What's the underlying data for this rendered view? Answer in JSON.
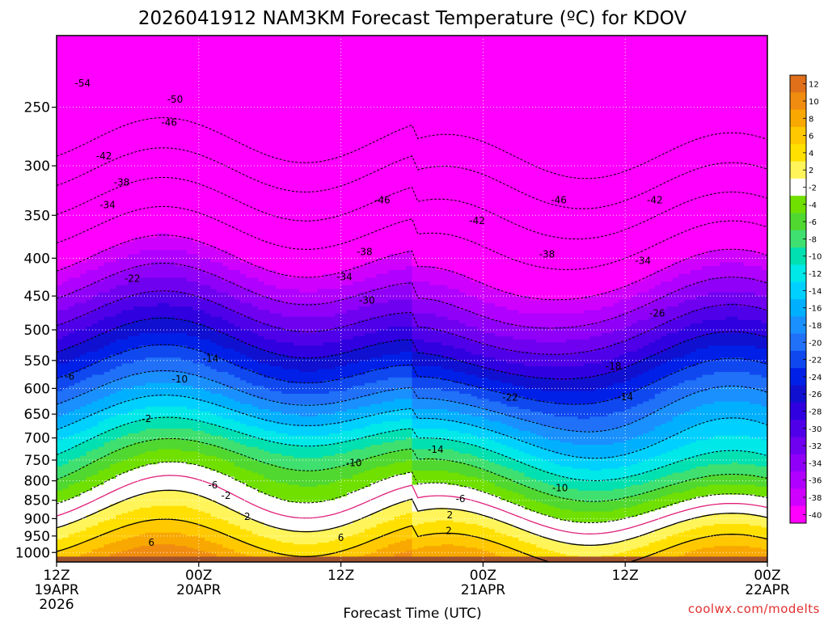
{
  "chart_data": {
    "type": "heatmap",
    "title": "2026041912 NAM3KM Forecast Temperature (ºC) for KDOV",
    "xlabel": "Forecast Time (UTC)",
    "ylabel": "",
    "credit": "coolwx.com/modelts",
    "y_scale": "log-pressure",
    "ylim": [
      1030,
      200
    ],
    "grid": true,
    "y_ticks": [
      250,
      300,
      350,
      400,
      450,
      500,
      550,
      600,
      650,
      700,
      750,
      800,
      850,
      900,
      950,
      1000
    ],
    "x_ticks": [
      {
        "hour": 0,
        "line1": "12Z",
        "line2": "19APR",
        "line3": "2026"
      },
      {
        "hour": 12,
        "line1": "00Z",
        "line2": "20APR",
        "line3": ""
      },
      {
        "hour": 24,
        "line1": "12Z",
        "line2": "",
        "line3": ""
      },
      {
        "hour": 36,
        "line1": "00Z",
        "line2": "21APR",
        "line3": ""
      },
      {
        "hour": 48,
        "line1": "12Z",
        "line2": "",
        "line3": ""
      },
      {
        "hour": 60,
        "line1": "00Z",
        "line2": "22APR",
        "line3": ""
      }
    ],
    "colorbar": {
      "ticks": [
        "12",
        "10",
        "8",
        "6",
        "4",
        "2",
        "-2",
        "-4",
        "-6",
        "-8",
        "-10",
        "-12",
        "-14",
        "-16",
        "-18",
        "-20",
        "-22",
        "-24",
        "-26",
        "-28",
        "-30",
        "-32",
        "-34",
        "-36",
        "-38",
        "-40"
      ],
      "colors": [
        "#e0701a",
        "#f08c10",
        "#f8a800",
        "#ffc800",
        "#ffe000",
        "#fff55a",
        "#ffffff",
        "#70e000",
        "#50d830",
        "#40e070",
        "#00e0b0",
        "#00e8e8",
        "#00d0ff",
        "#00b0ff",
        "#1a90ff",
        "#2070f8",
        "#1048f0",
        "#0020e8",
        "#1010d0",
        "#3000e0",
        "#5000e8",
        "#7000f0",
        "#9000f8",
        "#b000ff",
        "#d000ff",
        "#ff00ff"
      ]
    },
    "series": [
      {
        "temp_c": -54,
        "label_hours": [
          2
        ]
      },
      {
        "temp_c": -50,
        "label_hours": [
          8
        ]
      },
      {
        "temp_c": -46,
        "label_hours": [
          8,
          27,
          42
        ]
      },
      {
        "temp_c": -42,
        "label_hours": [
          4,
          35,
          51
        ]
      },
      {
        "temp_c": -38,
        "label_hours": [
          5,
          26,
          41
        ]
      },
      {
        "temp_c": -34,
        "label_hours": [
          4,
          24,
          49
        ]
      },
      {
        "temp_c": -30,
        "label_hours": [
          26
        ]
      },
      {
        "temp_c": -26,
        "label_hours": [
          52
        ]
      },
      {
        "temp_c": -22,
        "label_hours": [
          6,
          38
        ]
      },
      {
        "temp_c": -18,
        "label_hours": [
          46
        ]
      },
      {
        "temp_c": -14,
        "label_hours": [
          13,
          31,
          47
        ]
      },
      {
        "temp_c": -10,
        "label_hours": [
          10,
          25,
          42
        ]
      },
      {
        "temp_c": -6,
        "label_hours": [
          1,
          13,
          34
        ]
      },
      {
        "temp_c": -2,
        "label_hours": [
          7,
          14
        ]
      },
      {
        "temp_c": 2,
        "label_hours": [
          16,
          33,
          33
        ]
      },
      {
        "temp_c": 6,
        "label_hours": [
          8,
          24
        ]
      }
    ],
    "labels_drawn": [
      {
        "text": "-54",
        "hour": 2.2,
        "p": 232
      },
      {
        "text": "-50",
        "hour": 10.0,
        "p": 244
      },
      {
        "text": "-46",
        "hour": 9.5,
        "p": 262
      },
      {
        "text": "-42",
        "hour": 4.0,
        "p": 291
      },
      {
        "text": "-38",
        "hour": 5.5,
        "p": 316
      },
      {
        "text": "-34",
        "hour": 4.3,
        "p": 339
      },
      {
        "text": "-46",
        "hour": 27.5,
        "p": 334
      },
      {
        "text": "-42",
        "hour": 35.5,
        "p": 356
      },
      {
        "text": "-46",
        "hour": 42.4,
        "p": 334
      },
      {
        "text": "-42",
        "hour": 50.5,
        "p": 334
      },
      {
        "text": "-38",
        "hour": 26.0,
        "p": 392
      },
      {
        "text": "-38",
        "hour": 41.4,
        "p": 395
      },
      {
        "text": "-34",
        "hour": 24.3,
        "p": 424
      },
      {
        "text": "-34",
        "hour": 49.5,
        "p": 403
      },
      {
        "text": "-22",
        "hour": 6.4,
        "p": 426
      },
      {
        "text": "-30",
        "hour": 26.2,
        "p": 456
      },
      {
        "text": "-26",
        "hour": 50.7,
        "p": 475
      },
      {
        "text": "-14",
        "hour": 13.0,
        "p": 547
      },
      {
        "text": "-10",
        "hour": 10.4,
        "p": 583
      },
      {
        "text": "-6",
        "hour": 1.1,
        "p": 578
      },
      {
        "text": "-18",
        "hour": 47.0,
        "p": 560
      },
      {
        "text": "-22",
        "hour": 38.3,
        "p": 617
      },
      {
        "text": "-14",
        "hour": 48.0,
        "p": 616
      },
      {
        "text": "-2",
        "hour": 7.6,
        "p": 660
      },
      {
        "text": "-14",
        "hour": 32.0,
        "p": 726
      },
      {
        "text": "-10",
        "hour": 25.1,
        "p": 757
      },
      {
        "text": "-6",
        "hour": 13.2,
        "p": 811
      },
      {
        "text": "-2",
        "hour": 14.3,
        "p": 838
      },
      {
        "text": "-10",
        "hour": 42.5,
        "p": 818
      },
      {
        "text": "-6",
        "hour": 34.1,
        "p": 846
      },
      {
        "text": "2",
        "hour": 16.1,
        "p": 895
      },
      {
        "text": "2",
        "hour": 33.2,
        "p": 890
      },
      {
        "text": "2",
        "hour": 33.1,
        "p": 935
      },
      {
        "text": "6",
        "hour": 8.0,
        "p": 970
      },
      {
        "text": "6",
        "hour": 24.0,
        "p": 955
      }
    ]
  }
}
